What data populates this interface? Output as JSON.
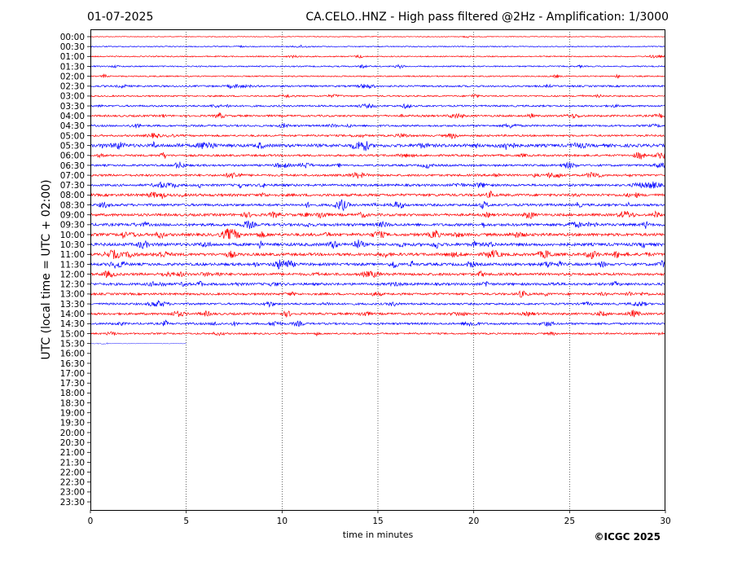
{
  "header": {
    "date": "01-07-2025",
    "title": "CA.CELO..HNZ - High pass filtered @2Hz - Amplification: 1/3000"
  },
  "footer": {
    "copyright": "©ICGC 2025"
  },
  "chart_data": {
    "type": "line",
    "title": "CA.CELO..HNZ - High pass filtered @2Hz - Amplification: 1/3000",
    "xlabel": "time in minutes",
    "ylabel": "UTC (local time = UTC + 02:00)",
    "xlim": [
      0,
      30
    ],
    "x_ticks": [
      "0",
      "5",
      "10",
      "15",
      "20",
      "25",
      "30"
    ],
    "y_ticks": [
      "00:00",
      "00:30",
      "01:00",
      "01:30",
      "02:00",
      "02:30",
      "03:00",
      "03:30",
      "04:00",
      "04:30",
      "05:00",
      "05:30",
      "06:00",
      "06:30",
      "07:00",
      "07:30",
      "08:00",
      "08:30",
      "09:00",
      "09:30",
      "10:00",
      "10:30",
      "11:00",
      "11:30",
      "12:00",
      "12:30",
      "13:00",
      "13:30",
      "14:00",
      "14:30",
      "15:00",
      "15:30",
      "16:00",
      "16:30",
      "17:00",
      "17:30",
      "18:00",
      "18:30",
      "19:00",
      "19:30",
      "20:00",
      "20:30",
      "21:00",
      "21:30",
      "22:00",
      "22:30",
      "23:00",
      "23:30"
    ],
    "grid": "vertical dotted lines at x ticks",
    "colors": {
      "even_rows": "#ff0000",
      "odd_rows": "#0000ff",
      "frame": "#000000"
    },
    "recorded_rows": 32,
    "last_row_extent_minutes": 5,
    "activity": [
      0.02,
      0.12,
      0.18,
      0.22,
      0.2,
      0.4,
      0.3,
      0.4,
      0.45,
      0.45,
      0.45,
      0.9,
      0.5,
      0.5,
      0.55,
      0.6,
      0.7,
      0.65,
      0.7,
      0.75,
      0.8,
      0.85,
      0.8,
      0.75,
      0.7,
      0.65,
      0.55,
      0.5,
      0.55,
      0.5,
      0.35,
      0.02
    ]
  }
}
